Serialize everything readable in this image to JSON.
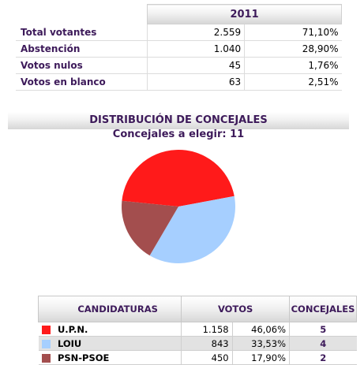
{
  "stats": {
    "year": "2011",
    "rows": [
      {
        "label": "Total votantes",
        "count": "2.559",
        "pct": "71,10%"
      },
      {
        "label": "Abstención",
        "count": "1.040",
        "pct": "28,90%"
      },
      {
        "label": "Votos nulos",
        "count": "45",
        "pct": "1,76%"
      },
      {
        "label": "Votos en blanco",
        "count": "63",
        "pct": "2,51%"
      }
    ]
  },
  "distribution": {
    "title": "DISTRIBUCIÓN DE CONCEJALES",
    "subtitle": "Concejales a elegir: 11"
  },
  "chart_data": {
    "type": "pie",
    "title": "",
    "slices": [
      {
        "label": "U.P.N.",
        "value": 5,
        "color": "#ff1a1a"
      },
      {
        "label": "LOIU",
        "value": 4,
        "color": "#a6cfff"
      },
      {
        "label": "PSN-PSOE",
        "value": 2,
        "color": "#a34e4e"
      }
    ]
  },
  "candidates": {
    "headers": {
      "candidaturas": "CANDIDATURAS",
      "votos": "VOTOS",
      "concejales": "CONCEJALES"
    },
    "rows": [
      {
        "name": "U.P.N.",
        "votes": "1.158",
        "pct": "46,06%",
        "seats": "5",
        "color": "#ff1a1a"
      },
      {
        "name": "LOIU",
        "votes": "843",
        "pct": "33,53%",
        "seats": "4",
        "color": "#a6cfff"
      },
      {
        "name": "PSN-PSOE",
        "votes": "450",
        "pct": "17,90%",
        "seats": "2",
        "color": "#a34e4e"
      }
    ]
  }
}
